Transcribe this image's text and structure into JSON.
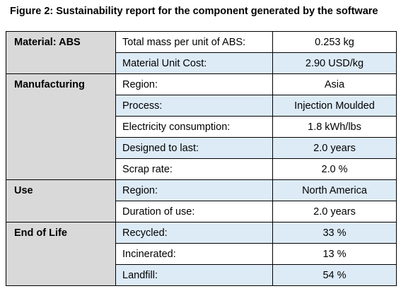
{
  "caption": "Figure 2: Sustainability report for the component generated by the software",
  "sections": [
    {
      "label": "Material: ABS",
      "rows": [
        {
          "param": "Total mass per unit of ABS:",
          "value": "0.253 kg",
          "shaded": false
        },
        {
          "param": "Material Unit Cost:",
          "value": "2.90 USD/kg",
          "shaded": true
        }
      ]
    },
    {
      "label": "Manufacturing",
      "rows": [
        {
          "param": "Region:",
          "value": "Asia",
          "shaded": false
        },
        {
          "param": "Process:",
          "value": "Injection Moulded",
          "shaded": true
        },
        {
          "param": "Electricity consumption:",
          "value": "1.8 kWh/lbs",
          "shaded": false
        },
        {
          "param": "Designed to last:",
          "value": "2.0 years",
          "shaded": true
        },
        {
          "param": "Scrap rate:",
          "value": "2.0 %",
          "shaded": false
        }
      ]
    },
    {
      "label": "Use",
      "rows": [
        {
          "param": "Region:",
          "value": "North America",
          "shaded": true
        },
        {
          "param": "Duration of use:",
          "value": "2.0 years",
          "shaded": false
        }
      ]
    },
    {
      "label": "End of Life",
      "rows": [
        {
          "param": "Recycled:",
          "value": "33 %",
          "shaded": true
        },
        {
          "param": "Incinerated:",
          "value": "13 %",
          "shaded": false
        },
        {
          "param": "Landfill:",
          "value": "54 %",
          "shaded": true
        }
      ]
    }
  ]
}
